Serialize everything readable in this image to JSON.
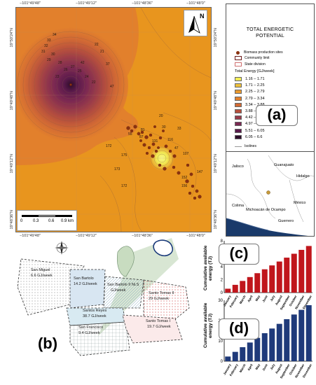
{
  "map": {
    "top_coords": [
      "−101°49'48\"",
      "−101°49'12\"",
      "−101°48'36\"",
      "−101°48'0\""
    ],
    "bottom_coords": [
      "−101°49'48\"",
      "−101°49'12\"",
      "−101°48'36\"",
      "−101°48'0\""
    ],
    "left_coords": [
      "19°50'24\"N",
      "19°49'48\"N",
      "19°49'12\"N",
      "19°48'36\"N"
    ],
    "right_coords": [
      "19°50'24\"N",
      "19°49'48\"N",
      "19°49'12\"N",
      "19°48'36\"N"
    ],
    "scale_labels": [
      "0",
      "0.3",
      "0.6",
      "0.9 km"
    ],
    "north_label": "N",
    "contour_labels": [
      "34",
      "33",
      "32",
      "31",
      "30",
      "29",
      "28",
      "27",
      "26",
      "25",
      "24",
      "23",
      "22",
      "21",
      "47",
      "37",
      "22",
      "172",
      "55",
      "81",
      "30",
      "175",
      "116",
      "47",
      "107",
      "147",
      "152",
      "156",
      "87",
      "131",
      "20",
      "173",
      "172",
      "33",
      "42"
    ],
    "colors": {
      "class_1": "#f2ee58",
      "class_2": "#edc03b",
      "class_3": "#ea9a2e",
      "class_4": "#e2802c",
      "class_5": "#d26a34",
      "class_6": "#b7503d",
      "class_7": "#983a4a",
      "class_8": "#7a2852",
      "class_9": "#5a1a4b",
      "class_10": "#2e0d2a",
      "site": "#8a3210",
      "background_field": "#e8951e"
    }
  },
  "legend": {
    "title_line1": "TOTAL ENERGETIC",
    "title_line2": "POTENTIAL",
    "biomass_sites": "Biomass production sites",
    "community_limit": "Community limit",
    "state_division": "State division",
    "energy_title": "Total Energy [GJ/week]",
    "classes": [
      "1.16 – 1.71",
      "1.71 – 2.25",
      "2.25 – 2.79",
      "2.79 – 3.34",
      "3.34 – 3.88",
      "3.88 – 4.42",
      "4.42 – 4.97",
      "4.97 – 5.51",
      "5.51 – 6.05",
      "6.05 – 6.6"
    ],
    "isolines": "Isolines"
  },
  "inset_map": {
    "states": [
      "Jalisco",
      "Guanajuato",
      "Hidalgo",
      "Colima",
      "Michoacán de Ocampo",
      "México",
      "Guerrero"
    ]
  },
  "panels": {
    "a": "(a)",
    "b": "(b)",
    "c": "(c)",
    "d": "(d)"
  },
  "communities": [
    {
      "name": "San Miguel",
      "value": "6.6 GJ/week"
    },
    {
      "name": "San Bartolo",
      "value": "14.2 GJ/week"
    },
    {
      "name": "San Bartolo II Ni.S",
      "value": "GJ/week"
    },
    {
      "name": "Santos Reyes",
      "value": "38.7 GJ/week"
    },
    {
      "name": "San Francisco",
      "value": "9.4 GJ/week"
    },
    {
      "name": "Santo Tomas II",
      "value": "29 GJ/week"
    },
    {
      "name": "Santo Tomas I",
      "value": "19.7 GJ/week"
    }
  ],
  "chart_data": [
    {
      "type": "bar",
      "title": "(c)",
      "ylabel": "Cumulative available energy (TJ)",
      "categories": [
        "January",
        "February",
        "March",
        "April",
        "May",
        "June",
        "July",
        "August",
        "September",
        "October",
        "November",
        "December"
      ],
      "values": [
        0.6,
        1.2,
        1.8,
        2.4,
        3.0,
        3.6,
        4.2,
        4.8,
        5.4,
        6.0,
        6.6,
        7.2
      ],
      "ylim": [
        0,
        8
      ],
      "yticks": [
        0,
        2,
        4,
        6,
        8
      ],
      "color": "#c0161c"
    },
    {
      "type": "bar",
      "title": "(d)",
      "ylabel": "Cumulative available energy (TJ)",
      "categories": [
        "January",
        "February",
        "March",
        "April",
        "May",
        "June",
        "July",
        "August",
        "September",
        "October",
        "November",
        "December"
      ],
      "values": [
        2.3,
        4.6,
        6.9,
        9.2,
        11.5,
        13.8,
        16.1,
        18.4,
        20.7,
        23.0,
        25.3,
        27.6
      ],
      "ylim": [
        0,
        30
      ],
      "yticks": [
        0,
        10,
        20,
        30
      ],
      "color": "#1f3a7a"
    }
  ]
}
